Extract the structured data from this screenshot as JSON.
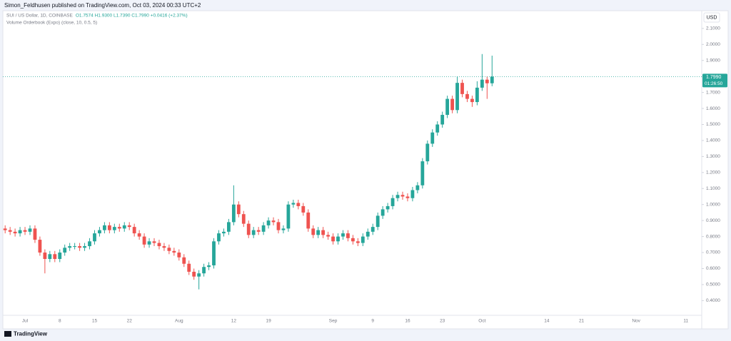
{
  "header": {
    "published": "Simon_Feldhusen published on TradingView.com, Oct 03, 2024 00:33 UTC+2"
  },
  "footer": {
    "brand": "TradingView"
  },
  "chart_data": {
    "type": "candlestick",
    "title": "SUI / US Dollar, 1D, COINBASE",
    "ohlc_text": "O1.7574 H1.9300 L1.7390 C1.7990 +0.0416 (+2.37%)",
    "indicator": "Volume Orderbook (Expo) (close, 10, 0.5, 5)",
    "currency": "USD",
    "up_color": "#26a69a",
    "down_color": "#ef5350",
    "last_price": {
      "value": 1.799,
      "label": "1.7990"
    },
    "countdown": "01:26:50",
    "categories": [
      null,
      null,
      null,
      null,
      "Jul",
      null,
      null,
      null,
      null,
      null,
      null,
      "8",
      null,
      null,
      null,
      null,
      null,
      null,
      "15",
      null,
      null,
      null,
      null,
      null,
      null,
      "22",
      null,
      null,
      null,
      null,
      null,
      null,
      null,
      null,
      null,
      "Aug",
      null,
      null,
      null,
      null,
      null,
      null,
      null,
      null,
      null,
      null,
      "12",
      null,
      null,
      null,
      null,
      null,
      null,
      "19",
      null,
      null,
      null,
      null,
      null,
      null,
      null,
      null,
      null,
      null,
      null,
      null,
      "Sep",
      null,
      null,
      null,
      null,
      null,
      null,
      null,
      "9",
      null,
      null,
      null,
      null,
      null,
      null,
      "16",
      null,
      null,
      null,
      null,
      null,
      null,
      "23",
      null,
      null,
      null,
      null,
      null,
      null,
      null,
      "Oct",
      null,
      null,
      null,
      null,
      null,
      null,
      null,
      null,
      null,
      null,
      null,
      null,
      "14",
      null,
      null,
      null,
      null,
      null,
      null,
      "21",
      null,
      null,
      null,
      null,
      null,
      null,
      null,
      null,
      null,
      null,
      "Nov",
      null,
      null,
      null,
      null,
      null,
      null,
      null,
      null,
      null,
      "11",
      null,
      null
    ],
    "open": [
      0.85,
      0.84,
      0.83,
      0.82,
      0.84,
      0.83,
      0.85,
      0.78,
      0.7,
      0.66,
      0.69,
      0.66,
      0.7,
      0.73,
      0.74,
      0.74,
      0.73,
      0.74,
      0.77,
      0.82,
      0.84,
      0.87,
      0.84,
      0.86,
      0.85,
      0.87,
      0.86,
      0.82,
      0.8,
      0.75,
      0.77,
      0.76,
      0.74,
      0.73,
      0.71,
      0.7,
      0.67,
      0.63,
      0.58,
      0.55,
      0.57,
      0.61,
      0.62,
      0.77,
      0.82,
      0.83,
      0.89,
      1.0,
      0.94,
      0.88,
      0.81,
      0.84,
      0.83,
      0.87,
      0.9,
      0.89,
      0.84,
      0.85,
      1.0,
      1.01,
      0.99,
      0.95,
      0.85,
      0.81,
      0.84,
      0.81,
      0.8,
      0.77,
      0.8,
      0.82,
      0.79,
      0.77,
      0.76,
      0.8,
      0.83,
      0.86,
      0.93,
      0.97,
      0.99,
      1.04,
      1.06,
      1.05,
      1.04,
      1.09,
      1.12,
      1.27,
      1.38,
      1.45,
      1.5,
      1.56,
      1.66,
      1.59,
      1.76,
      1.69,
      1.66,
      1.64,
      1.73,
      1.78,
      1.7574,
      null,
      null,
      null,
      null,
      null,
      null,
      null,
      null,
      null,
      null,
      null,
      null,
      null,
      null,
      null,
      null,
      null,
      null,
      null,
      null,
      null,
      null,
      null,
      null,
      null,
      null,
      null,
      null,
      null,
      null,
      null,
      null,
      null,
      null,
      null,
      null,
      null,
      null,
      null,
      null,
      null
    ],
    "high": [
      0.87,
      0.86,
      0.85,
      0.86,
      0.86,
      0.87,
      0.87,
      0.8,
      0.72,
      0.71,
      0.71,
      0.72,
      0.75,
      0.76,
      0.76,
      0.76,
      0.76,
      0.79,
      0.84,
      0.86,
      0.89,
      0.89,
      0.88,
      0.88,
      0.89,
      0.89,
      0.88,
      0.84,
      0.82,
      0.79,
      0.79,
      0.78,
      0.76,
      0.75,
      0.73,
      0.72,
      0.69,
      0.65,
      0.6,
      0.59,
      0.63,
      0.64,
      0.79,
      0.84,
      0.85,
      0.91,
      1.12,
      1.02,
      0.96,
      0.9,
      0.86,
      0.86,
      0.89,
      0.92,
      0.92,
      0.91,
      0.87,
      1.02,
      1.03,
      1.03,
      1.01,
      0.97,
      0.87,
      0.86,
      0.86,
      0.83,
      0.82,
      0.82,
      0.84,
      0.84,
      0.81,
      0.79,
      0.82,
      0.85,
      0.88,
      0.95,
      0.99,
      1.01,
      1.06,
      1.08,
      1.08,
      1.07,
      1.11,
      1.14,
      1.29,
      1.4,
      1.47,
      1.52,
      1.58,
      1.68,
      1.68,
      1.8,
      1.78,
      1.71,
      1.68,
      1.77,
      1.94,
      1.8,
      1.93,
      null,
      null,
      null,
      null,
      null,
      null,
      null,
      null,
      null,
      null,
      null,
      null,
      null,
      null,
      null,
      null,
      null,
      null,
      null,
      null,
      null,
      null,
      null,
      null,
      null,
      null,
      null,
      null,
      null,
      null,
      null,
      null,
      null,
      null,
      null,
      null,
      null,
      null,
      null,
      null,
      null
    ],
    "low": [
      0.82,
      0.81,
      0.8,
      0.8,
      0.81,
      0.81,
      0.76,
      0.68,
      0.57,
      0.64,
      0.64,
      0.64,
      0.68,
      0.71,
      0.72,
      0.71,
      0.71,
      0.72,
      0.75,
      0.8,
      0.82,
      0.82,
      0.82,
      0.83,
      0.83,
      0.84,
      0.8,
      0.78,
      0.73,
      0.73,
      0.74,
      0.72,
      0.71,
      0.69,
      0.68,
      0.65,
      0.61,
      0.56,
      0.53,
      0.47,
      0.55,
      0.59,
      0.6,
      0.75,
      0.8,
      0.81,
      0.87,
      0.92,
      0.86,
      0.79,
      0.79,
      0.81,
      0.81,
      0.85,
      0.87,
      0.82,
      0.82,
      0.83,
      0.98,
      0.97,
      0.93,
      0.83,
      0.79,
      0.79,
      0.79,
      0.78,
      0.75,
      0.75,
      0.78,
      0.77,
      0.75,
      0.74,
      0.74,
      0.78,
      0.81,
      0.84,
      0.91,
      0.95,
      0.97,
      1.02,
      1.03,
      1.02,
      1.02,
      1.07,
      1.1,
      1.25,
      1.36,
      1.43,
      1.48,
      1.54,
      1.57,
      1.57,
      1.67,
      1.64,
      1.61,
      1.62,
      1.71,
      1.66,
      1.739,
      null,
      null,
      null,
      null,
      null,
      null,
      null,
      null,
      null,
      null,
      null,
      null,
      null,
      null,
      null,
      null,
      null,
      null,
      null,
      null,
      null,
      null,
      null,
      null,
      null,
      null,
      null,
      null,
      null,
      null,
      null,
      null,
      null,
      null,
      null,
      null,
      null,
      null,
      null,
      null,
      null
    ],
    "close": [
      0.84,
      0.83,
      0.82,
      0.84,
      0.83,
      0.85,
      0.78,
      0.7,
      0.66,
      0.69,
      0.66,
      0.7,
      0.73,
      0.74,
      0.74,
      0.73,
      0.74,
      0.77,
      0.82,
      0.84,
      0.87,
      0.84,
      0.86,
      0.85,
      0.87,
      0.86,
      0.82,
      0.8,
      0.75,
      0.77,
      0.76,
      0.74,
      0.73,
      0.71,
      0.7,
      0.67,
      0.63,
      0.58,
      0.55,
      0.57,
      0.61,
      0.62,
      0.77,
      0.82,
      0.83,
      0.89,
      1.0,
      0.94,
      0.88,
      0.81,
      0.84,
      0.83,
      0.87,
      0.9,
      0.89,
      0.84,
      0.85,
      1.0,
      1.01,
      0.99,
      0.95,
      0.85,
      0.81,
      0.84,
      0.81,
      0.8,
      0.77,
      0.8,
      0.82,
      0.79,
      0.77,
      0.76,
      0.8,
      0.83,
      0.86,
      0.93,
      0.97,
      0.99,
      1.04,
      1.06,
      1.05,
      1.04,
      1.09,
      1.12,
      1.27,
      1.38,
      1.45,
      1.5,
      1.56,
      1.66,
      1.59,
      1.76,
      1.69,
      1.66,
      1.64,
      1.73,
      1.78,
      1.7574,
      1.799,
      null,
      null,
      null,
      null,
      null,
      null,
      null,
      null,
      null,
      null,
      null,
      null,
      null,
      null,
      null,
      null,
      null,
      null,
      null,
      null,
      null,
      null,
      null,
      null,
      null,
      null,
      null,
      null,
      null,
      null,
      null,
      null,
      null,
      null,
      null,
      null,
      null,
      null,
      null,
      null,
      null
    ],
    "ylim": [
      0.25,
      2.135
    ],
    "yticks": [
      {
        "value": 0.4,
        "label": "0.4000"
      },
      {
        "value": 0.5,
        "label": "0.5000"
      },
      {
        "value": 0.6,
        "label": "0.6000"
      },
      {
        "value": 0.7,
        "label": "0.7000"
      },
      {
        "value": 0.8,
        "label": "0.8000"
      },
      {
        "value": 0.9,
        "label": "0.9000"
      },
      {
        "value": 1.0,
        "label": "1.0000"
      },
      {
        "value": 1.1,
        "label": "1.1000"
      },
      {
        "value": 1.2,
        "label": "1.2000"
      },
      {
        "value": 1.3,
        "label": "1.3000"
      },
      {
        "value": 1.4,
        "label": "1.4000"
      },
      {
        "value": 1.5,
        "label": "1.5000"
      },
      {
        "value": 1.6,
        "label": "1.6000"
      },
      {
        "value": 1.7,
        "label": "1.7000"
      },
      {
        "value": 1.8,
        "label": "1.8000"
      },
      {
        "value": 1.9,
        "label": "1.9000"
      },
      {
        "value": 2.0,
        "label": "2.0000"
      },
      {
        "value": 2.1,
        "label": "2.1000"
      }
    ],
    "grid": false
  }
}
